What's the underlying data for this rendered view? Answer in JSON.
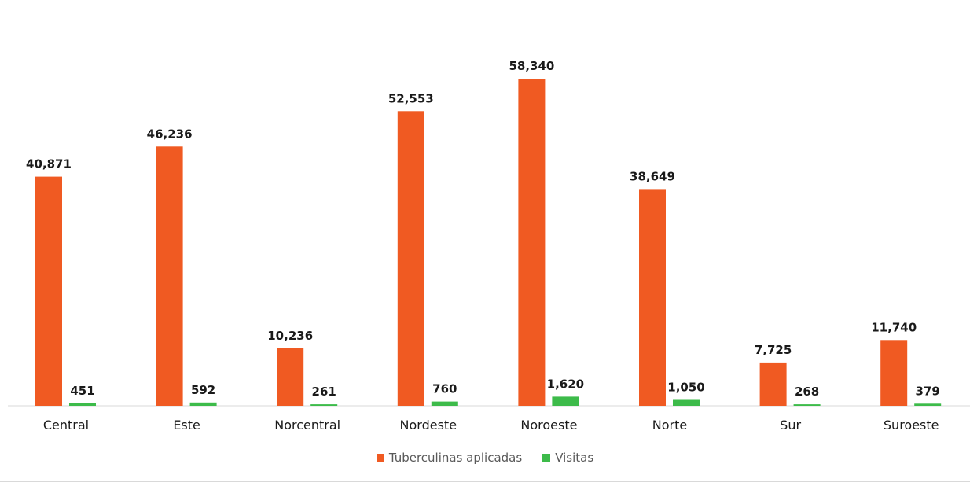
{
  "chart_data": {
    "type": "bar",
    "categories": [
      "Central",
      "Este",
      "Norcentral",
      "Nordeste",
      "Noroeste",
      "Norte",
      "Sur",
      "Suroeste"
    ],
    "series": [
      {
        "name": "Tuberculinas aplicadas",
        "values": [
          40871,
          46236,
          10236,
          52553,
          58340,
          38649,
          7725,
          11740
        ],
        "color": "#F05A22"
      },
      {
        "name": "Visitas",
        "values": [
          451,
          592,
          261,
          760,
          1620,
          1050,
          268,
          379
        ],
        "color": "#3DBB4A"
      }
    ],
    "data_labels": {
      "series_0": [
        "40,871",
        "46,236",
        "10,236",
        "52,553",
        "58,340",
        "38,649",
        "7,725",
        "11,740"
      ],
      "series_1": [
        "451",
        "592",
        "261",
        "760",
        "1,620",
        "1,050",
        "268",
        "379"
      ]
    },
    "ylim": [
      0,
      58340
    ],
    "grid": false,
    "legend_position": "bottom"
  }
}
